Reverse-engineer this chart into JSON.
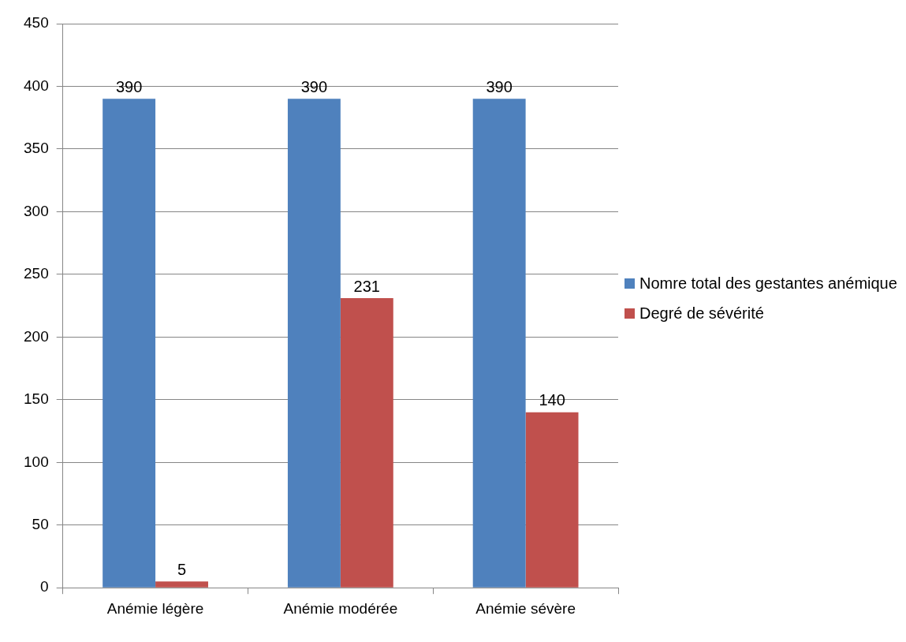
{
  "chart_data": {
    "type": "bar",
    "categories": [
      "Anémie légère",
      "Anémie modérée",
      "Anémie sévère"
    ],
    "series": [
      {
        "name": "Nomre total des gestantes anémique",
        "color": "#4f81bd",
        "values": [
          390,
          390,
          390
        ]
      },
      {
        "name": "Degré de sévérité",
        "color": "#c0504d",
        "values": [
          5,
          231,
          140
        ]
      }
    ],
    "ylim": [
      0,
      450
    ],
    "yticks": [
      0,
      50,
      100,
      150,
      200,
      250,
      300,
      350,
      400,
      450
    ],
    "grid": "y",
    "legend": "right",
    "data_labels": true
  }
}
